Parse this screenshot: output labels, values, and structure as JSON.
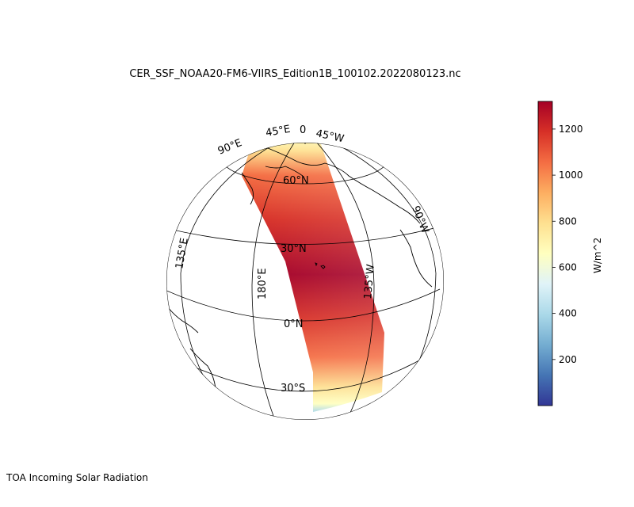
{
  "figure": {
    "title": "CER_SSF_NOAA20-FM6-VIIRS_Edition1B_100102.2022080123.nc",
    "footer": "TOA Incoming Solar Radiation"
  },
  "map": {
    "projection": "orthographic",
    "parallel_labels": [
      "60°N",
      "30°N",
      "0°N",
      "30°S"
    ],
    "meridian_labels": [
      "90°E",
      "135°E",
      "180°E",
      "135°W",
      "90°W",
      "45°E",
      "0",
      "45°W"
    ],
    "swath": {
      "variable": "TOA Incoming Solar Radiation",
      "min_edge_color": "#4575b4",
      "max_color": "#a50026"
    }
  },
  "colorbar": {
    "label": "W/m^2",
    "ticks": [
      "200",
      "400",
      "600",
      "800",
      "1000",
      "1200"
    ],
    "tick_values": [
      200,
      400,
      600,
      800,
      1000,
      1200
    ],
    "range": [
      0,
      1320
    ],
    "colormap": [
      "#313695",
      "#4575b4",
      "#74add1",
      "#abd9e9",
      "#e0f3f8",
      "#ffffbf",
      "#fee090",
      "#fdae61",
      "#f46d43",
      "#d73027",
      "#a50026"
    ]
  }
}
